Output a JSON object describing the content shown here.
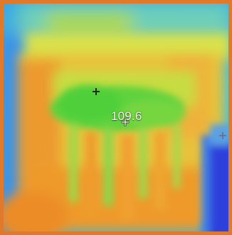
{
  "image": {
    "frame_color": "#e07a2a",
    "palette": {
      "cold": "#2f7fe0",
      "cool": "#33c6e8",
      "mid_cool": "#7be05a",
      "warm": "#e8e24a",
      "hot": "#f09a2a"
    }
  },
  "measurement": {
    "center_reading": "109.6"
  },
  "markers": {
    "dark_marker_icon": "crosshair-plus-icon",
    "center_marker_icon": "crosshair-target-icon",
    "right_marker_icon": "crosshair-plus-icon"
  }
}
